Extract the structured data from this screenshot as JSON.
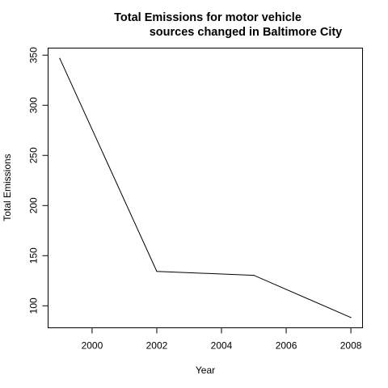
{
  "chart_data": {
    "type": "line",
    "title_lines": [
      "Total Emissions for motor vehicle",
      "sources changed in Baltimore City"
    ],
    "xlabel": "Year",
    "ylabel": "Total Emissions",
    "x": [
      1999,
      2002,
      2005,
      2008
    ],
    "y": [
      346.8,
      134.3,
      130.4,
      88.3
    ],
    "xlim": [
      1998.64,
      2008.36
    ],
    "ylim": [
      78.07,
      357.04
    ],
    "x_ticks": [
      2000,
      2002,
      2004,
      2006,
      2008
    ],
    "x_tick_labels": [
      "2000",
      "2002",
      "2004",
      "2006",
      "2008"
    ],
    "y_ticks": [
      100,
      150,
      200,
      250,
      300,
      350
    ],
    "y_tick_labels": [
      "100",
      "150",
      "200",
      "250",
      "300",
      "350"
    ],
    "line_color": "#000000",
    "grid": false,
    "legend": "none"
  }
}
